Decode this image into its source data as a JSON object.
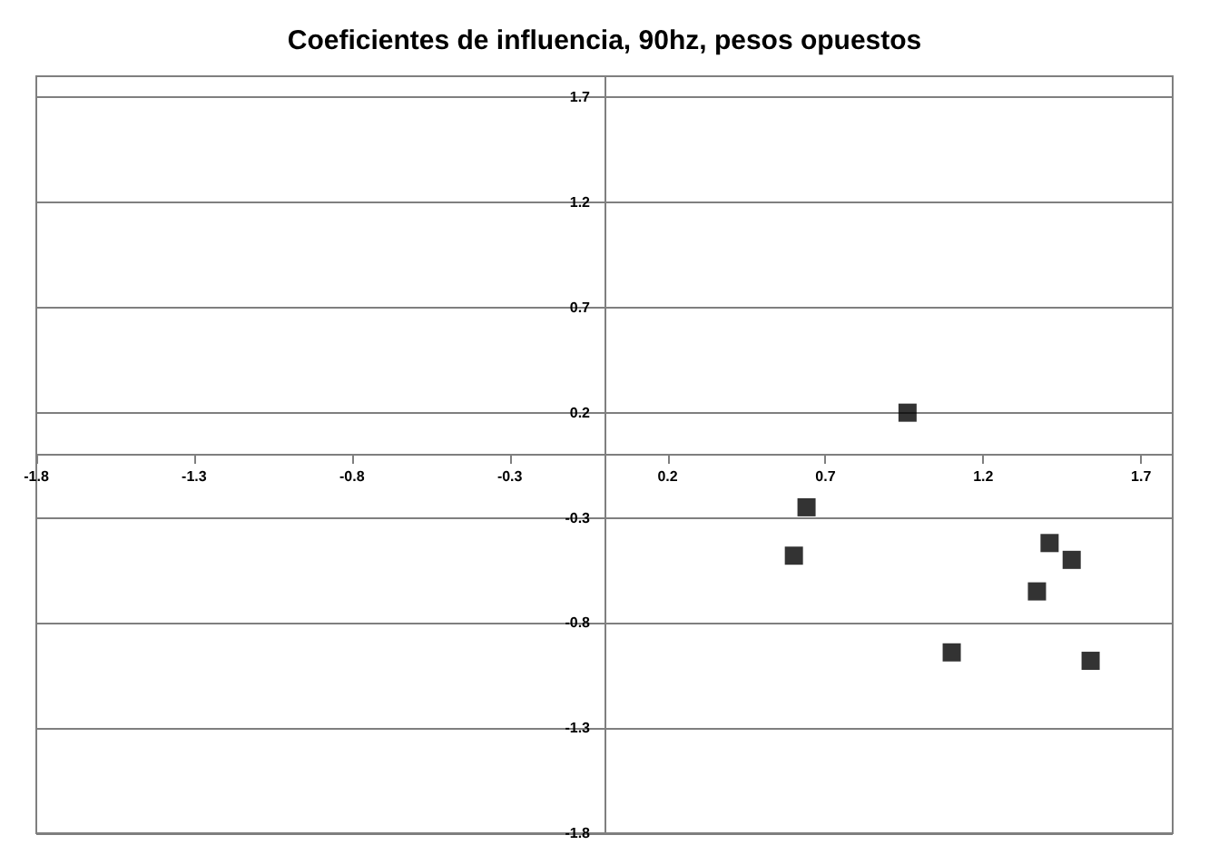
{
  "chart_data": {
    "type": "scatter",
    "title": "Coeficientes de influencia, 90hz, pesos opuestos",
    "x": [
      0.96,
      0.64,
      0.6,
      1.41,
      1.48,
      1.37,
      1.1,
      1.54
    ],
    "values": [
      0.2,
      -0.25,
      -0.48,
      -0.42,
      -0.5,
      -0.65,
      -0.94,
      -0.98
    ],
    "color": "#000000",
    "marker": "square",
    "grid": "y",
    "xlim": [
      -1.8,
      1.8
    ],
    "xticks": [
      -1.8,
      -1.3,
      -0.8,
      -0.3,
      0.2,
      0.7,
      1.2,
      1.7
    ],
    "ylim": [
      -1.8,
      1.8
    ],
    "yticks": [
      -1.8,
      -1.3,
      -0.8,
      -0.3,
      0.2,
      0.7,
      1.2,
      1.7
    ]
  }
}
